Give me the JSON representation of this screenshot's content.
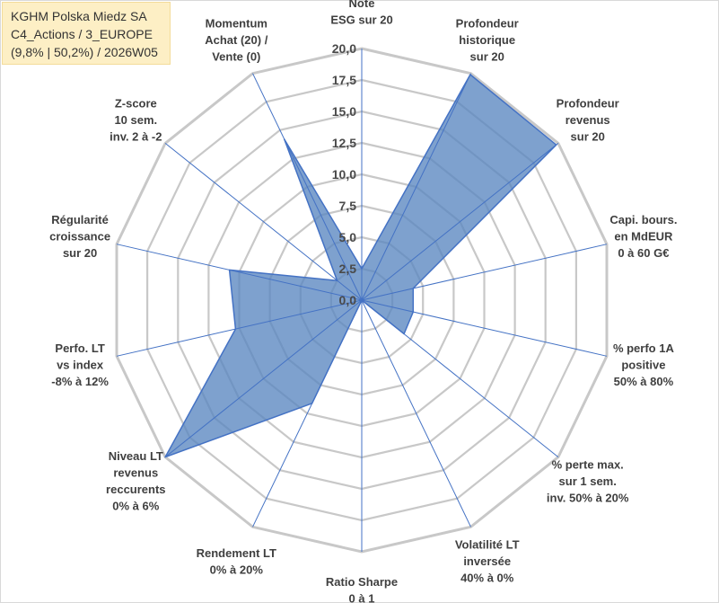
{
  "title": {
    "line1": "KGHM Polska Miedz SA",
    "line2": "C4_Actions / 3_EUROPE",
    "line3": "(9,8% | 50,2%) / 2026W05"
  },
  "chart_data": {
    "type": "radar",
    "rmin": 0,
    "rmax": 20,
    "ticks": [
      "0,0",
      "2,5",
      "5,0",
      "7,5",
      "10,0",
      "12,5",
      "15,0",
      "17,5",
      "20,0"
    ],
    "tick_values": [
      0,
      2.5,
      5,
      7.5,
      10,
      12.5,
      15,
      17.5,
      20
    ],
    "axes": [
      {
        "label": [
          "Note",
          "ESG sur 20"
        ],
        "value": 2.5
      },
      {
        "label": [
          "Profondeur",
          "historique",
          "sur 20"
        ],
        "value": 19.9
      },
      {
        "label": [
          "Profondeur",
          "revenus",
          "sur 20"
        ],
        "value": 19.8
      },
      {
        "label": [
          "Capi. bours.",
          "en MdEUR",
          "0 à 60 G€"
        ],
        "value": 4.2
      },
      {
        "label": [
          "% perfo 1A",
          "positive",
          "50% à 80%"
        ],
        "value": 4.2
      },
      {
        "label": [
          "% perte max.",
          "sur 1 sem.",
          "inv. 50% à 20%"
        ],
        "value": 4.3
      },
      {
        "label": [
          "Volatilité LT",
          "inversée",
          "40% à 0%"
        ],
        "value": 0
      },
      {
        "label": [
          "Ratio Sharpe",
          "0 à 1"
        ],
        "value": 0
      },
      {
        "label": [
          "Rendement LT",
          "0% à 20%"
        ],
        "value": 9.1
      },
      {
        "label": [
          "Niveau LT",
          "revenus",
          "reccurents",
          "0% à 6%"
        ],
        "value": 20
      },
      {
        "label": [
          "Perfo. LT",
          "vs index",
          "-8% à 12%"
        ],
        "value": 10.3
      },
      {
        "label": [
          "Régularité",
          "croissance",
          "sur 20"
        ],
        "value": 10.8
      },
      {
        "label": [
          "Z-score",
          "10 sem.",
          "inv. 2 à -2"
        ],
        "value": 2.5
      },
      {
        "label": [
          "Momentum",
          "Achat (20) /",
          "Vente (0)"
        ],
        "value": 14.2
      }
    ],
    "colors": {
      "fill": "#5a86c0",
      "stroke": "#4472c4",
      "grid": "#c8c8c8",
      "spoke": "#4472c4"
    }
  }
}
